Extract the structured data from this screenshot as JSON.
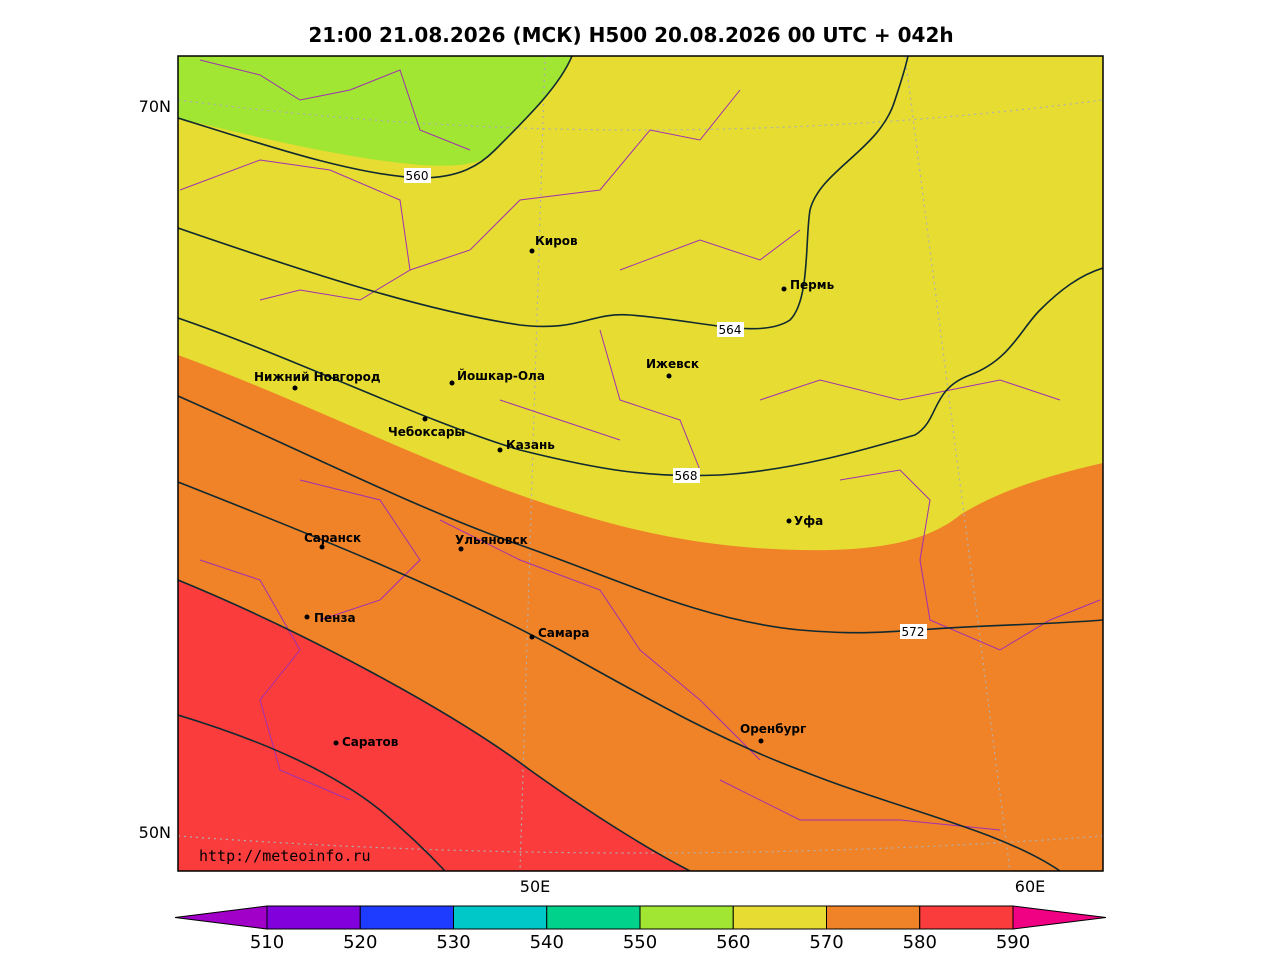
{
  "title": "21:00 21.08.2026 (МСК) H500  20.08.2026 00 UTC + 042h",
  "map": {
    "lat_labels": [
      "70N",
      "50N"
    ],
    "lon_labels": [
      "50E",
      "60E"
    ],
    "contour_labels": [
      "560",
      "564",
      "568",
      "572"
    ],
    "cities": [
      "Киров",
      "Пермь",
      "Ижевск",
      "Нижний Новгород",
      "Йошкар-Ола",
      "Чебоксары",
      "Казань",
      "Уфа",
      "Саранск",
      "Ульяновск",
      "Пенза",
      "Самара",
      "Оренбург",
      "Саратов"
    ],
    "source": "http://meteoinfo.ru"
  },
  "colorbar": {
    "ticks": [
      "510",
      "520",
      "530",
      "540",
      "550",
      "560",
      "570",
      "580",
      "590"
    ],
    "colors": [
      "#a000c8",
      "#8200dc",
      "#1e3cff",
      "#00c8c8",
      "#00d28c",
      "#a0e632",
      "#e6dc32",
      "#f08228",
      "#fa3c3c",
      "#f00082"
    ]
  }
}
